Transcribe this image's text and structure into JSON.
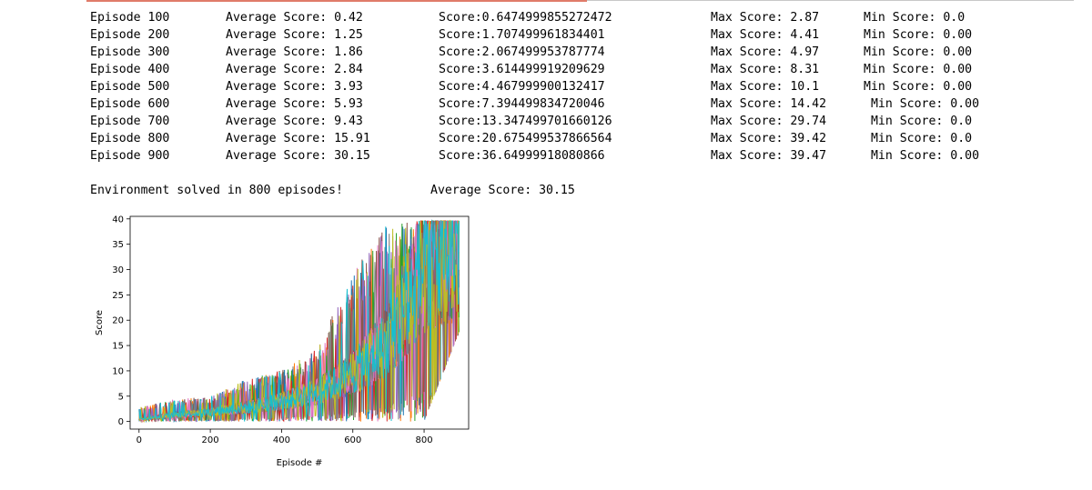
{
  "output": {
    "rows": [
      {
        "episode": "Episode 100",
        "average": "Average Score: 0.42",
        "score": "Score:0.6474999855272472",
        "max": "Max Score: 2.87",
        "min": "Min Score: 0.0"
      },
      {
        "episode": "Episode 200",
        "average": "Average Score: 1.25",
        "score": "Score:1.707499961834401",
        "max": "Max Score: 4.41",
        "min": "Min Score: 0.00"
      },
      {
        "episode": "Episode 300",
        "average": "Average Score: 1.86",
        "score": "Score:2.067499953787774",
        "max": "Max Score: 4.97",
        "min": "Min Score: 0.00"
      },
      {
        "episode": "Episode 400",
        "average": "Average Score: 2.84",
        "score": "Score:3.614499919209629",
        "max": "Max Score: 8.31",
        "min": "Min Score: 0.00"
      },
      {
        "episode": "Episode 500",
        "average": "Average Score: 3.93",
        "score": "Score:4.467999900132417",
        "max": "Max Score: 10.1",
        "min": "Min Score: 0.00"
      },
      {
        "episode": "Episode 600",
        "average": "Average Score: 5.93",
        "score": "Score:7.394499834720046",
        "max": "Max Score: 14.42",
        "min": " Min Score: 0.00"
      },
      {
        "episode": "Episode 700",
        "average": "Average Score: 9.43",
        "score": "Score:13.347499701660126",
        "max": "Max Score: 29.74",
        "min": " Min Score: 0.0"
      },
      {
        "episode": "Episode 800",
        "average": "Average Score: 15.91",
        "score": "Score:20.675499537866564",
        "max": "Max Score: 39.42",
        "min": " Min Score: 0.0"
      },
      {
        "episode": "Episode 900",
        "average": "Average Score: 30.15",
        "score": "Score:36.64999918080866",
        "max": "Max Score: 39.47",
        "min": " Min Score: 0.00"
      }
    ],
    "solved_text": "Environment solved in 800 episodes!",
    "solved_avg": "Average Score: 30.15"
  },
  "chart_data": {
    "type": "line",
    "xlabel": "Episode #",
    "ylabel": "Score",
    "xlim": [
      -25,
      925
    ],
    "ylim": [
      -1.5,
      40.5
    ],
    "xticks": [
      0,
      200,
      400,
      600,
      800
    ],
    "yticks": [
      0,
      5,
      10,
      15,
      20,
      25,
      30,
      35,
      40
    ],
    "grid": false,
    "n_series": 20,
    "n_episodes": 900,
    "series_colors": [
      "#1f77b4",
      "#ff7f0e",
      "#2ca02c",
      "#d62728",
      "#9467bd",
      "#8c564b",
      "#e377c2",
      "#7f7f7f",
      "#bcbd22",
      "#17becf"
    ],
    "envelope": {
      "x": [
        0,
        100,
        200,
        300,
        400,
        500,
        600,
        700,
        800,
        900
      ],
      "average": [
        0.42,
        1.25,
        1.86,
        2.84,
        3.93,
        5.93,
        9.43,
        15.91,
        30.15,
        36.65
      ],
      "max": [
        2.87,
        4.41,
        4.97,
        8.31,
        10.1,
        14.42,
        29.74,
        39.42,
        39.47,
        39.5
      ],
      "min": [
        0.0,
        0.0,
        0.0,
        0.0,
        0.0,
        0.0,
        0.0,
        0.0,
        0.0,
        18.0
      ]
    }
  }
}
